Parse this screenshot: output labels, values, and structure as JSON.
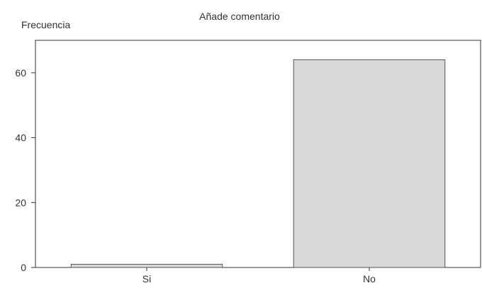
{
  "chart_data": {
    "type": "bar",
    "title": "Añade comentario",
    "ylabel": "Frecuencia",
    "xlabel": "",
    "categories": [
      "Si",
      "No"
    ],
    "values": [
      1,
      64
    ],
    "ylim": [
      0,
      70
    ],
    "yticks": [
      0,
      20,
      40,
      60
    ],
    "grid": false,
    "legend": "none",
    "bar_color": "#d9d9d9",
    "bar_edge_color": "#555555"
  }
}
